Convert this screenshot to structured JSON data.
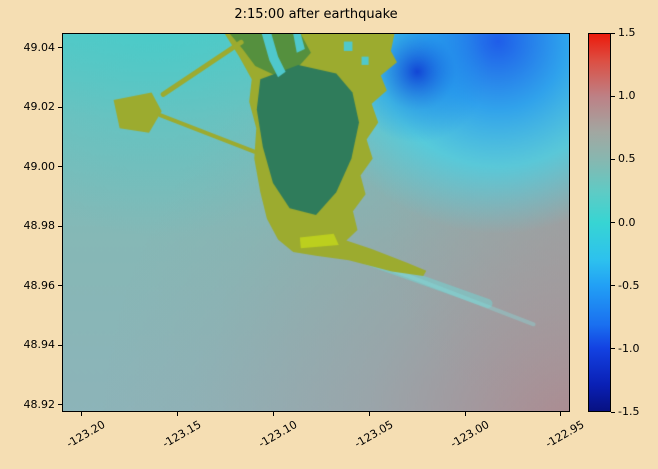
{
  "figure": {
    "title": "2:15:00 after earthquake",
    "background": "#f5deb3",
    "text_color": "#000000"
  },
  "axes": {
    "x_tick_labels": [
      "-123.20",
      "-123.15",
      "-123.10",
      "-123.05",
      "-123.00",
      "-122.95"
    ],
    "x_tick_values": [
      -123.2,
      -123.15,
      -123.1,
      -123.05,
      -123.0,
      -122.95
    ],
    "y_tick_labels": [
      "49.04",
      "49.02",
      "49.00",
      "48.98",
      "48.96",
      "48.94",
      "48.92"
    ],
    "y_tick_values": [
      49.04,
      49.02,
      49.0,
      48.98,
      48.96,
      48.94,
      48.92
    ],
    "x_range": [
      -123.21,
      -122.945
    ],
    "y_range": [
      48.9175,
      49.045
    ]
  },
  "colorbar": {
    "tick_labels": [
      "1.5",
      "1.0",
      "0.5",
      "0.0",
      "-0.5",
      "-1.0",
      "-1.5"
    ],
    "tick_values": [
      1.5,
      1.0,
      0.5,
      0.0,
      -0.5,
      -1.0,
      -1.5
    ],
    "range": [
      -1.5,
      1.5
    ],
    "stops": [
      [
        0.0,
        "#ec1a0c"
      ],
      [
        0.07,
        "#dd4e42"
      ],
      [
        0.167,
        "#bd8186"
      ],
      [
        0.26,
        "#a2a7a1"
      ],
      [
        0.333,
        "#87b7b0"
      ],
      [
        0.42,
        "#5ecbc5"
      ],
      [
        0.5,
        "#37d5d3"
      ],
      [
        0.6,
        "#2dc1ee"
      ],
      [
        0.667,
        "#22a0f5"
      ],
      [
        0.77,
        "#1a70f0"
      ],
      [
        0.833,
        "#1342e2"
      ],
      [
        0.93,
        "#0a20b5"
      ],
      [
        1.0,
        "#071182"
      ]
    ]
  },
  "chart_data": {
    "type": "heatmap",
    "title": "2:15:00 after earthquake",
    "xlabel": "",
    "ylabel": "",
    "x_range": [
      -123.21,
      -122.945
    ],
    "y_range": [
      48.9175,
      49.045
    ],
    "value_range": [
      -1.5,
      1.5
    ],
    "description": "Tsunami simulation snapshot: sea-surface elevation field over a river-delta coastline. Most open water sits near +0.3 to +0.6 (gray-teal). A deep trough (-0.5 to -1.2, bright blue) hugs the coast at the top right; a broad crest (+0.6 to +1.0, rosy) fills the bottom-right corner. Green polygons are land (olive = delta lowland, dark green = interior), with jetties/causeways and a terminal islet offshore at upper left and a sediment plume trailing from the southern sandspit.",
    "colormap": [
      [
        -1.5,
        "#071182"
      ],
      [
        -1.0,
        "#1342e2"
      ],
      [
        -0.5,
        "#22a0f5"
      ],
      [
        0.0,
        "#37d5d3"
      ],
      [
        0.5,
        "#87b7b0"
      ],
      [
        1.0,
        "#bd8186"
      ],
      [
        1.5,
        "#ec1a0c"
      ]
    ],
    "sample_grid": {
      "lon": [
        -123.2,
        -123.15,
        -123.1,
        -123.05,
        -123.0,
        -122.95
      ],
      "lat": [
        49.04,
        49.02,
        49.0,
        48.98,
        48.96,
        48.94,
        48.92
      ],
      "surface_m": [
        [
          0.15,
          0.3,
          null,
          null,
          -0.9,
          -0.5
        ],
        [
          0.3,
          0.35,
          null,
          null,
          -0.4,
          -0.2
        ],
        [
          0.4,
          0.4,
          null,
          null,
          0.1,
          0.3
        ],
        [
          0.45,
          0.45,
          null,
          0.3,
          0.4,
          0.5
        ],
        [
          0.45,
          0.5,
          0.5,
          0.5,
          0.6,
          0.7
        ],
        [
          0.5,
          0.5,
          0.55,
          0.6,
          0.7,
          0.85
        ],
        [
          0.5,
          0.55,
          0.6,
          0.65,
          0.8,
          0.95
        ]
      ],
      "note": "null = land cells; values in metres estimated from the colorbar"
    },
    "render": {
      "layers": [
        {
          "type": "linear",
          "x1": 0,
          "y1": 0,
          "x2": 0,
          "y2": 1,
          "stops": [
            [
              0,
              "#58c8c6"
            ],
            [
              0.22,
              "#76bfbd"
            ],
            [
              0.55,
              "#86b8b6"
            ],
            [
              1,
              "#8db4b9"
            ]
          ]
        },
        {
          "type": "radial",
          "cx": 0.18,
          "cy": 0.0,
          "r": 0.4,
          "stops": [
            [
              0,
              "rgba(62,206,204,0.5)"
            ],
            [
              1,
              "rgba(62,206,204,0)"
            ]
          ]
        },
        {
          "type": "radial",
          "cx": 1.02,
          "cy": 1.08,
          "r": 0.95,
          "stops": [
            [
              0,
              "rgba(183,125,131,0.8)"
            ],
            [
              0.45,
              "rgba(178,138,144,0.35)"
            ],
            [
              0.8,
              "rgba(178,138,144,0.08)"
            ],
            [
              1,
              "rgba(178,138,144,0)"
            ]
          ]
        },
        {
          "type": "radial",
          "cx": 1.04,
          "cy": 0.52,
          "r": 0.4,
          "stops": [
            [
              0,
              "rgba(172,148,150,0.45)"
            ],
            [
              1,
              "rgba(172,148,150,0)"
            ]
          ]
        },
        {
          "type": "radial",
          "cx": 0.86,
          "cy": 0.02,
          "r": 0.38,
          "stops": [
            [
              0,
              "rgba(28,88,235,0.95)"
            ],
            [
              0.35,
              "rgba(40,160,242,0.9)"
            ],
            [
              0.65,
              "rgba(72,210,232,0.75)"
            ],
            [
              1,
              "rgba(80,212,226,0)"
            ]
          ]
        },
        {
          "type": "radial",
          "cx": 0.7,
          "cy": 0.1,
          "r": 0.14,
          "stops": [
            [
              0,
              "rgba(14,58,212,0.9)"
            ],
            [
              0.55,
              "rgba(30,140,235,0.45)"
            ],
            [
              1,
              "rgba(30,140,235,0)"
            ]
          ]
        },
        {
          "type": "line",
          "x1": 0.6,
          "y1": 0.6,
          "x2": 0.84,
          "y2": 0.715,
          "width": 9,
          "color": "rgba(112,216,214,0.5)"
        },
        {
          "type": "line",
          "x1": 0.62,
          "y1": 0.61,
          "x2": 0.93,
          "y2": 0.77,
          "width": 4,
          "color": "rgba(134,222,220,0.38)"
        },
        {
          "type": "polygon",
          "color": "#9cab2f",
          "points": [
            [
              0.32,
              0.0
            ],
            [
              0.655,
              0.0
            ],
            [
              0.648,
              0.045
            ],
            [
              0.66,
              0.075
            ],
            [
              0.628,
              0.11
            ],
            [
              0.64,
              0.15
            ],
            [
              0.61,
              0.185
            ],
            [
              0.623,
              0.235
            ],
            [
              0.6,
              0.28
            ],
            [
              0.612,
              0.33
            ],
            [
              0.588,
              0.375
            ],
            [
              0.598,
              0.425
            ],
            [
              0.573,
              0.47
            ],
            [
              0.582,
              0.52
            ],
            [
              0.56,
              0.548
            ],
            [
              0.61,
              0.57
            ],
            [
              0.68,
              0.607
            ],
            [
              0.718,
              0.628
            ],
            [
              0.712,
              0.642
            ],
            [
              0.65,
              0.63
            ],
            [
              0.565,
              0.6
            ],
            [
              0.5,
              0.588
            ],
            [
              0.455,
              0.578
            ],
            [
              0.425,
              0.545
            ],
            [
              0.403,
              0.49
            ],
            [
              0.39,
              0.42
            ],
            [
              0.378,
              0.33
            ],
            [
              0.382,
              0.25
            ],
            [
              0.368,
              0.18
            ],
            [
              0.373,
              0.12
            ],
            [
              0.348,
              0.06
            ]
          ]
        },
        {
          "type": "polygon",
          "color": "#55903e",
          "points": [
            [
              0.33,
              0.0
            ],
            [
              0.47,
              0.0
            ],
            [
              0.49,
              0.05
            ],
            [
              0.46,
              0.095
            ],
            [
              0.42,
              0.11
            ],
            [
              0.38,
              0.085
            ],
            [
              0.355,
              0.04
            ]
          ]
        },
        {
          "type": "polygon",
          "color": "#2f7c5b",
          "points": [
            [
              0.39,
              0.12
            ],
            [
              0.465,
              0.082
            ],
            [
              0.54,
              0.105
            ],
            [
              0.572,
              0.155
            ],
            [
              0.585,
              0.235
            ],
            [
              0.57,
              0.33
            ],
            [
              0.54,
              0.42
            ],
            [
              0.5,
              0.48
            ],
            [
              0.448,
              0.462
            ],
            [
              0.415,
              0.395
            ],
            [
              0.395,
              0.3
            ],
            [
              0.383,
              0.2
            ]
          ]
        },
        {
          "type": "polygon",
          "color": "#bccf1e",
          "points": [
            [
              0.468,
              0.54
            ],
            [
              0.535,
              0.53
            ],
            [
              0.545,
              0.56
            ],
            [
              0.47,
              0.568
            ]
          ]
        },
        {
          "type": "polygon",
          "color": "#4fc8cc",
          "points": [
            [
              0.393,
              0.0
            ],
            [
              0.412,
              0.0
            ],
            [
              0.425,
              0.06
            ],
            [
              0.44,
              0.1
            ],
            [
              0.425,
              0.115
            ],
            [
              0.408,
              0.07
            ]
          ]
        },
        {
          "type": "polygon",
          "color": "#4fc8cc",
          "points": [
            [
              0.455,
              0.0
            ],
            [
              0.47,
              0.0
            ],
            [
              0.478,
              0.04
            ],
            [
              0.462,
              0.05
            ]
          ]
        },
        {
          "type": "polygon",
          "color": "#4fc8cc",
          "points": [
            [
              0.555,
              0.02
            ],
            [
              0.572,
              0.02
            ],
            [
              0.572,
              0.045
            ],
            [
              0.555,
              0.045
            ]
          ]
        },
        {
          "type": "polygon",
          "color": "#4fc8cc",
          "points": [
            [
              0.59,
              0.06
            ],
            [
              0.604,
              0.06
            ],
            [
              0.604,
              0.082
            ],
            [
              0.59,
              0.082
            ]
          ]
        },
        {
          "type": "polygon",
          "color": "#9cab2f",
          "points": [
            [
              0.1,
              0.175
            ],
            [
              0.175,
              0.155
            ],
            [
              0.195,
              0.205
            ],
            [
              0.17,
              0.262
            ],
            [
              0.112,
              0.25
            ]
          ]
        },
        {
          "type": "line",
          "x1": 0.198,
          "y1": 0.16,
          "x2": 0.352,
          "y2": 0.022,
          "width": 5,
          "color": "#9cab2f"
        },
        {
          "type": "line",
          "x1": 0.192,
          "y1": 0.215,
          "x2": 0.378,
          "y2": 0.312,
          "width": 4,
          "color": "#9cab2f"
        }
      ]
    }
  }
}
